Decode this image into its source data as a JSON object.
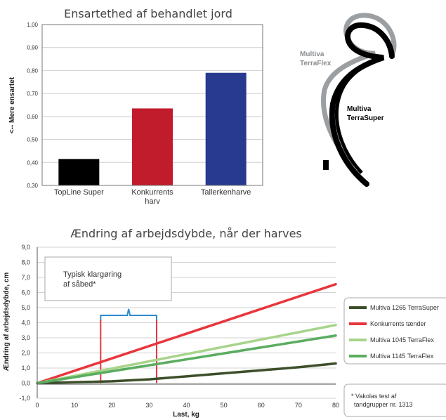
{
  "chart_data": [
    {
      "type": "bar",
      "title": "Ensartethed af behandlet jord",
      "ylabel": "<-- Mere ensartet",
      "xlabel": "",
      "ylim": [
        0.3,
        1.0
      ],
      "yticks": [
        "0,30",
        "0,40",
        "0,50",
        "0,60",
        "0,70",
        "0,80",
        "0,90",
        "1,00"
      ],
      "categories": [
        {
          "line1": "TopLine Super",
          "line2": ""
        },
        {
          "line1": "Konkurrents",
          "line2": "harv"
        },
        {
          "line1": "Tallerkenharve",
          "line2": ""
        }
      ],
      "values": [
        0.415,
        0.635,
        0.79
      ],
      "colors": [
        "#000000",
        "#c01c2c",
        "#283a8f"
      ],
      "grid": true
    },
    {
      "type": "line",
      "title": "Ændring af arbejdsdybde, når der harves",
      "xlabel": "Last, kg",
      "ylabel": "Ændring af arbejdsdybde, cm",
      "xlim": [
        0,
        80
      ],
      "ylim": [
        -1.0,
        9.0
      ],
      "xticks": [
        "0",
        "10",
        "20",
        "30",
        "40",
        "50",
        "60",
        "70",
        "80"
      ],
      "yticks": [
        "-1,0",
        "0,0",
        "1,0",
        "2,0",
        "3,0",
        "4,0",
        "5,0",
        "6,0",
        "7,0",
        "8,0",
        "9,0"
      ],
      "series": [
        {
          "name": "Multiva 1265 TerraSuper",
          "color": "#3d4f2a",
          "x": [
            0,
            20,
            30,
            40,
            50,
            60,
            70,
            80
          ],
          "y": [
            0,
            0.12,
            0.25,
            0.45,
            0.65,
            0.85,
            1.05,
            1.3
          ]
        },
        {
          "name": "Konkurrents tænder",
          "color": "#e8363c",
          "x": [
            0,
            80
          ],
          "y": [
            0,
            6.55
          ]
        },
        {
          "name": "Multiva 1045 TerraFlex",
          "color": "#a8d48a",
          "x": [
            0,
            80
          ],
          "y": [
            0,
            3.85
          ]
        },
        {
          "name": "Multiva 1145 TerraFlex",
          "color": "#5aad60",
          "x": [
            0,
            80
          ],
          "y": [
            0,
            3.15
          ]
        }
      ],
      "annotation": {
        "line1": "Typisk klargøring",
        "line2": "af såbed*",
        "x_from": 17,
        "x_to": 32
      },
      "footnote": {
        "line1": "* Vakolas test af",
        "line2": "tandgrupper nr. 1313"
      },
      "grid": true,
      "legend_position": "right"
    }
  ],
  "profile_labels": {
    "terraflex_line1": "Multiva",
    "terraflex_line2": "TerraFlex",
    "terrasuper_line1": "Multiva",
    "terrasuper_line2": "TerraSuper"
  }
}
